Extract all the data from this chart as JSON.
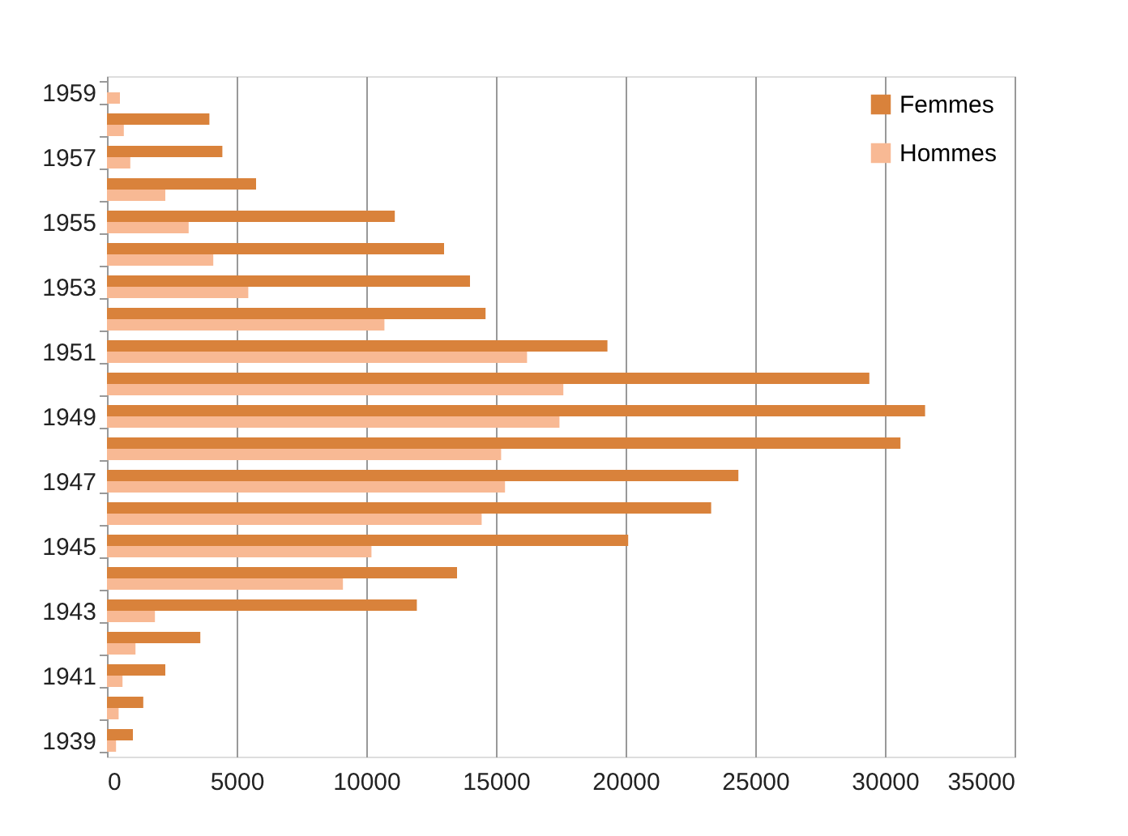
{
  "chart_data": {
    "type": "bar",
    "orientation": "horizontal",
    "categories": [
      "1959",
      null,
      "1957",
      null,
      "1955",
      null,
      "1953",
      null,
      "1951",
      null,
      "1949",
      null,
      "1947",
      null,
      "1945",
      null,
      "1943",
      null,
      "1941",
      null,
      "1939"
    ],
    "series": [
      {
        "name": "Femmes",
        "color": "#d9823b",
        "values": [
          null,
          3950,
          4450,
          5750,
          11100,
          13000,
          14000,
          14600,
          19300,
          29400,
          31550,
          30600,
          24350,
          23300,
          20100,
          13500,
          11950,
          3600,
          2250,
          1400,
          1000
        ]
      },
      {
        "name": "Hommes",
        "color": "#f8b994",
        "values": [
          500,
          650,
          900,
          2250,
          3150,
          4100,
          5450,
          10700,
          16200,
          17600,
          17450,
          15200,
          15350,
          14450,
          10200,
          9100,
          1850,
          1100,
          600,
          450,
          350
        ]
      }
    ],
    "xlim": [
      0,
      35000
    ],
    "xticks": [
      0,
      5000,
      10000,
      15000,
      20000,
      25000,
      30000,
      35000
    ],
    "grid": "x",
    "legend": "top right"
  }
}
